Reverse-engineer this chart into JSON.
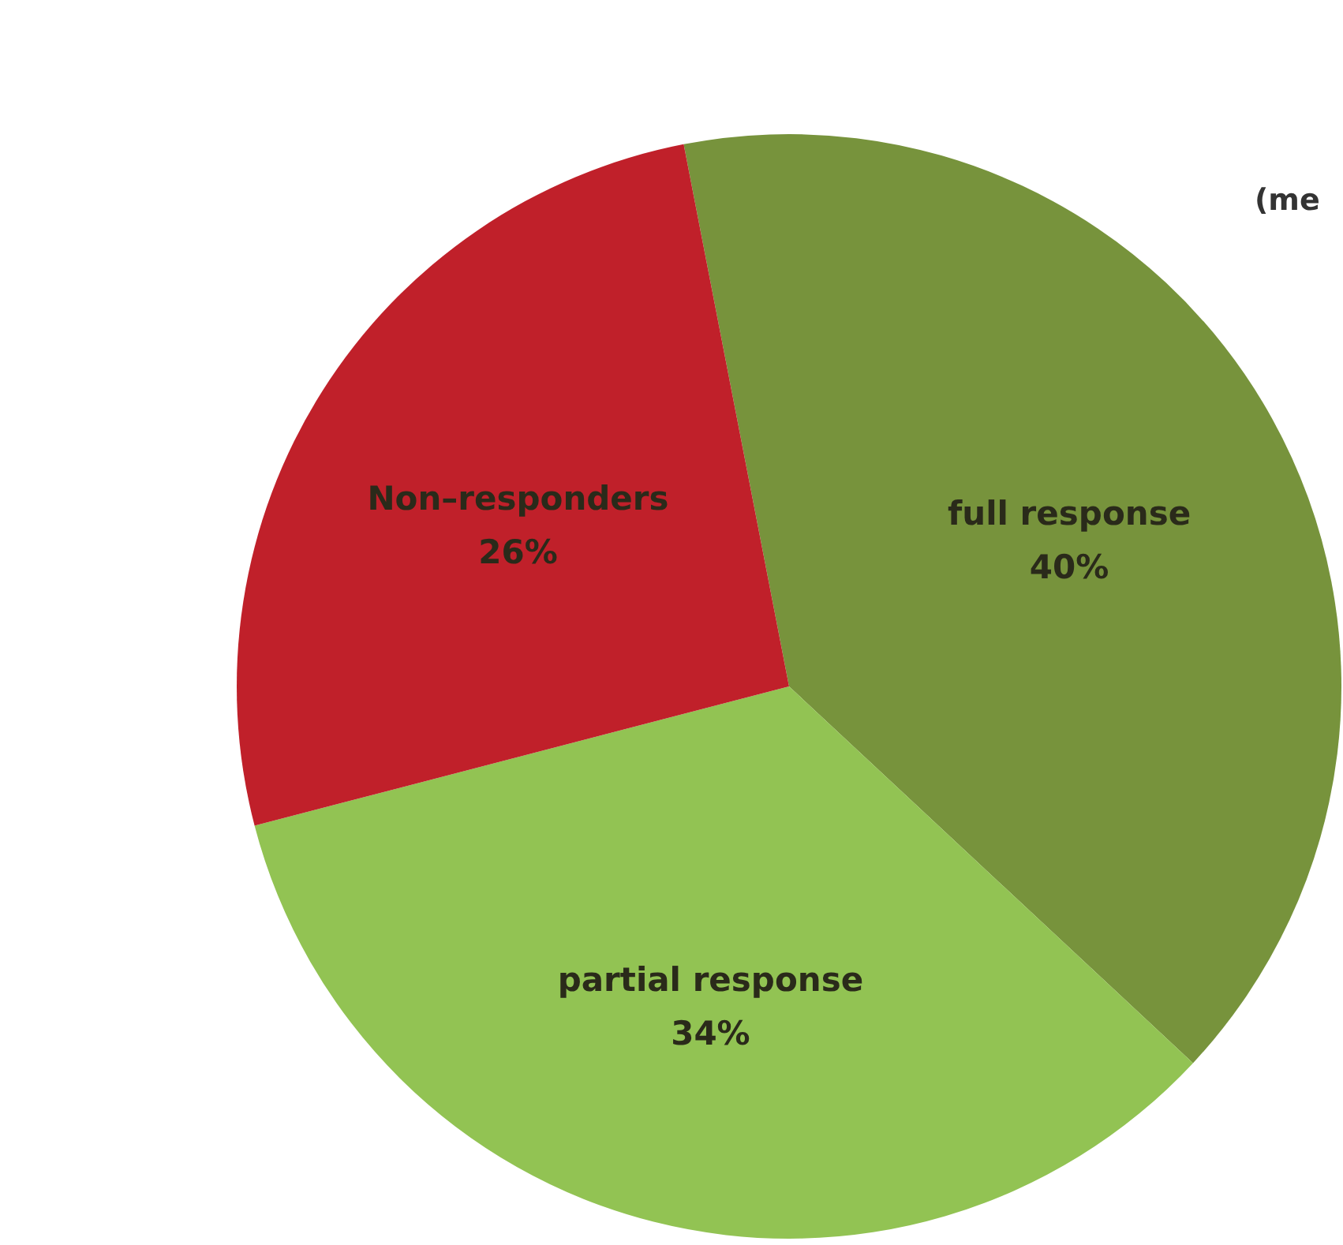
{
  "chart_data": {
    "type": "pie",
    "categories": [
      "full response",
      "partial response",
      "Non–responders"
    ],
    "values": [
      40,
      34,
      26
    ],
    "colors": [
      "#77933c",
      "#92c353",
      "#c0202a"
    ],
    "value_labels": [
      "40%",
      "34%",
      "26%"
    ],
    "annotations": [
      "(me"
    ]
  }
}
